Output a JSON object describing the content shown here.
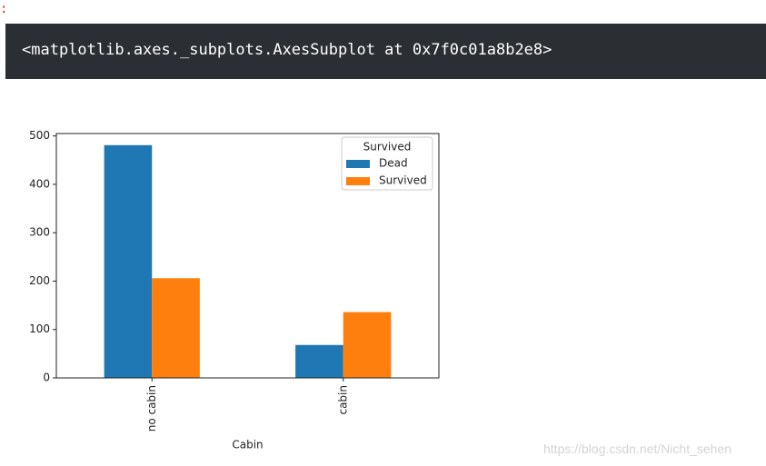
{
  "prompt_fragment": ":",
  "output_text": "<matplotlib.axes._subplots.AxesSubplot at 0x7f0c01a8b2e8>",
  "watermark": "https://blog.csdn.net/Nicht_sehen",
  "chart_data": {
    "type": "bar",
    "x_label": "Cabin",
    "legend_title": "Survived",
    "categories": [
      "no cabin",
      "cabin"
    ],
    "series": [
      {
        "name": "Dead",
        "color": "#1f77b4",
        "values": [
          481,
          68
        ]
      },
      {
        "name": "Survived",
        "color": "#ff7f0e",
        "values": [
          206,
          136
        ]
      }
    ],
    "ylim": [
      0,
      505
    ],
    "yticks": [
      0,
      100,
      200,
      300,
      400,
      500
    ],
    "legend": "upper right"
  }
}
